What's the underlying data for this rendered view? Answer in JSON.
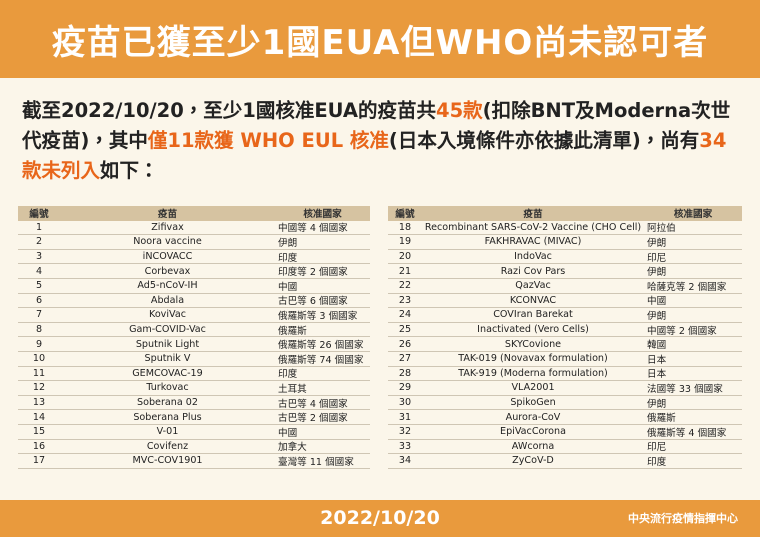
{
  "header": {
    "title": "疫苗已獲至少1國EUA但WHO尚未認可者"
  },
  "intro": {
    "segments": [
      {
        "text": "截至2022/10/20，至少1國核准EUA的疫苗共",
        "color": "#222222"
      },
      {
        "text": "45款",
        "color": "#e8661a"
      },
      {
        "text": "(扣除BNT及Moderna次世代疫苗)，其中",
        "color": "#222222"
      },
      {
        "text": "僅11款獲 WHO EUL 核准",
        "color": "#e8661a"
      },
      {
        "text": "(日本入境條件亦依據此清單)，尚有",
        "color": "#222222"
      },
      {
        "text": "34款未列入",
        "color": "#e8661a"
      },
      {
        "text": "如下：",
        "color": "#222222"
      }
    ]
  },
  "tables": [
    {
      "columns": [
        "編號",
        "疫苗",
        "核准國家"
      ],
      "rows": [
        [
          1,
          "Zifivax",
          "中國等 4 個國家"
        ],
        [
          2,
          "Noora vaccine",
          "伊朗"
        ],
        [
          3,
          "iNCOVACC",
          "印度"
        ],
        [
          4,
          "Corbevax",
          "印度等 2 個國家"
        ],
        [
          5,
          "Ad5-nCoV-IH",
          "中國"
        ],
        [
          6,
          "Abdala",
          "古巴等 6 個國家"
        ],
        [
          7,
          "KoviVac",
          "俄羅斯等 3 個國家"
        ],
        [
          8,
          "Gam-COVID-Vac",
          "俄羅斯"
        ],
        [
          9,
          "Sputnik Light",
          "俄羅斯等 26 個國家"
        ],
        [
          10,
          "Sputnik V",
          "俄羅斯等 74 個國家"
        ],
        [
          11,
          "GEMCOVAC-19",
          "印度"
        ],
        [
          12,
          "Turkovac",
          "土耳其"
        ],
        [
          13,
          "Soberana 02",
          "古巴等 4 個國家"
        ],
        [
          14,
          "Soberana Plus",
          "古巴等 2 個國家"
        ],
        [
          15,
          "V-01",
          "中國"
        ],
        [
          16,
          "Covifenz",
          "加拿大"
        ],
        [
          17,
          "MVC-COV1901",
          "臺灣等 11 個國家"
        ]
      ]
    },
    {
      "columns": [
        "編號",
        "疫苗",
        "核准國家"
      ],
      "rows": [
        [
          18,
          "Recombinant SARS-CoV-2 Vaccine (CHO Cell)",
          "阿拉伯"
        ],
        [
          19,
          "FAKHRAVAC (MIVAC)",
          "伊朗"
        ],
        [
          20,
          "IndoVac",
          "印尼"
        ],
        [
          21,
          "Razi Cov Pars",
          "伊朗"
        ],
        [
          22,
          "QazVac",
          "哈薩克等 2 個國家"
        ],
        [
          23,
          "KCONVAC",
          "中國"
        ],
        [
          24,
          "COVIran Barekat",
          "伊朗"
        ],
        [
          25,
          "Inactivated (Vero Cells)",
          "中國等 2 個國家"
        ],
        [
          26,
          "SKYCovione",
          "韓國"
        ],
        [
          27,
          "TAK-019 (Novavax formulation)",
          "日本"
        ],
        [
          28,
          "TAK-919 (Moderna formulation)",
          "日本"
        ],
        [
          29,
          "VLA2001",
          "法國等 33 個國家"
        ],
        [
          30,
          "SpikoGen",
          "伊朗"
        ],
        [
          31,
          "Aurora-CoV",
          "俄羅斯"
        ],
        [
          32,
          "EpiVacCorona",
          "俄羅斯等 4 個國家"
        ],
        [
          33,
          "AWcorna",
          "印尼"
        ],
        [
          34,
          "ZyCoV-D",
          "印度"
        ]
      ]
    }
  ],
  "footer": {
    "date": "2022/10/20",
    "organization": "中央流行疫情指揮中心"
  }
}
